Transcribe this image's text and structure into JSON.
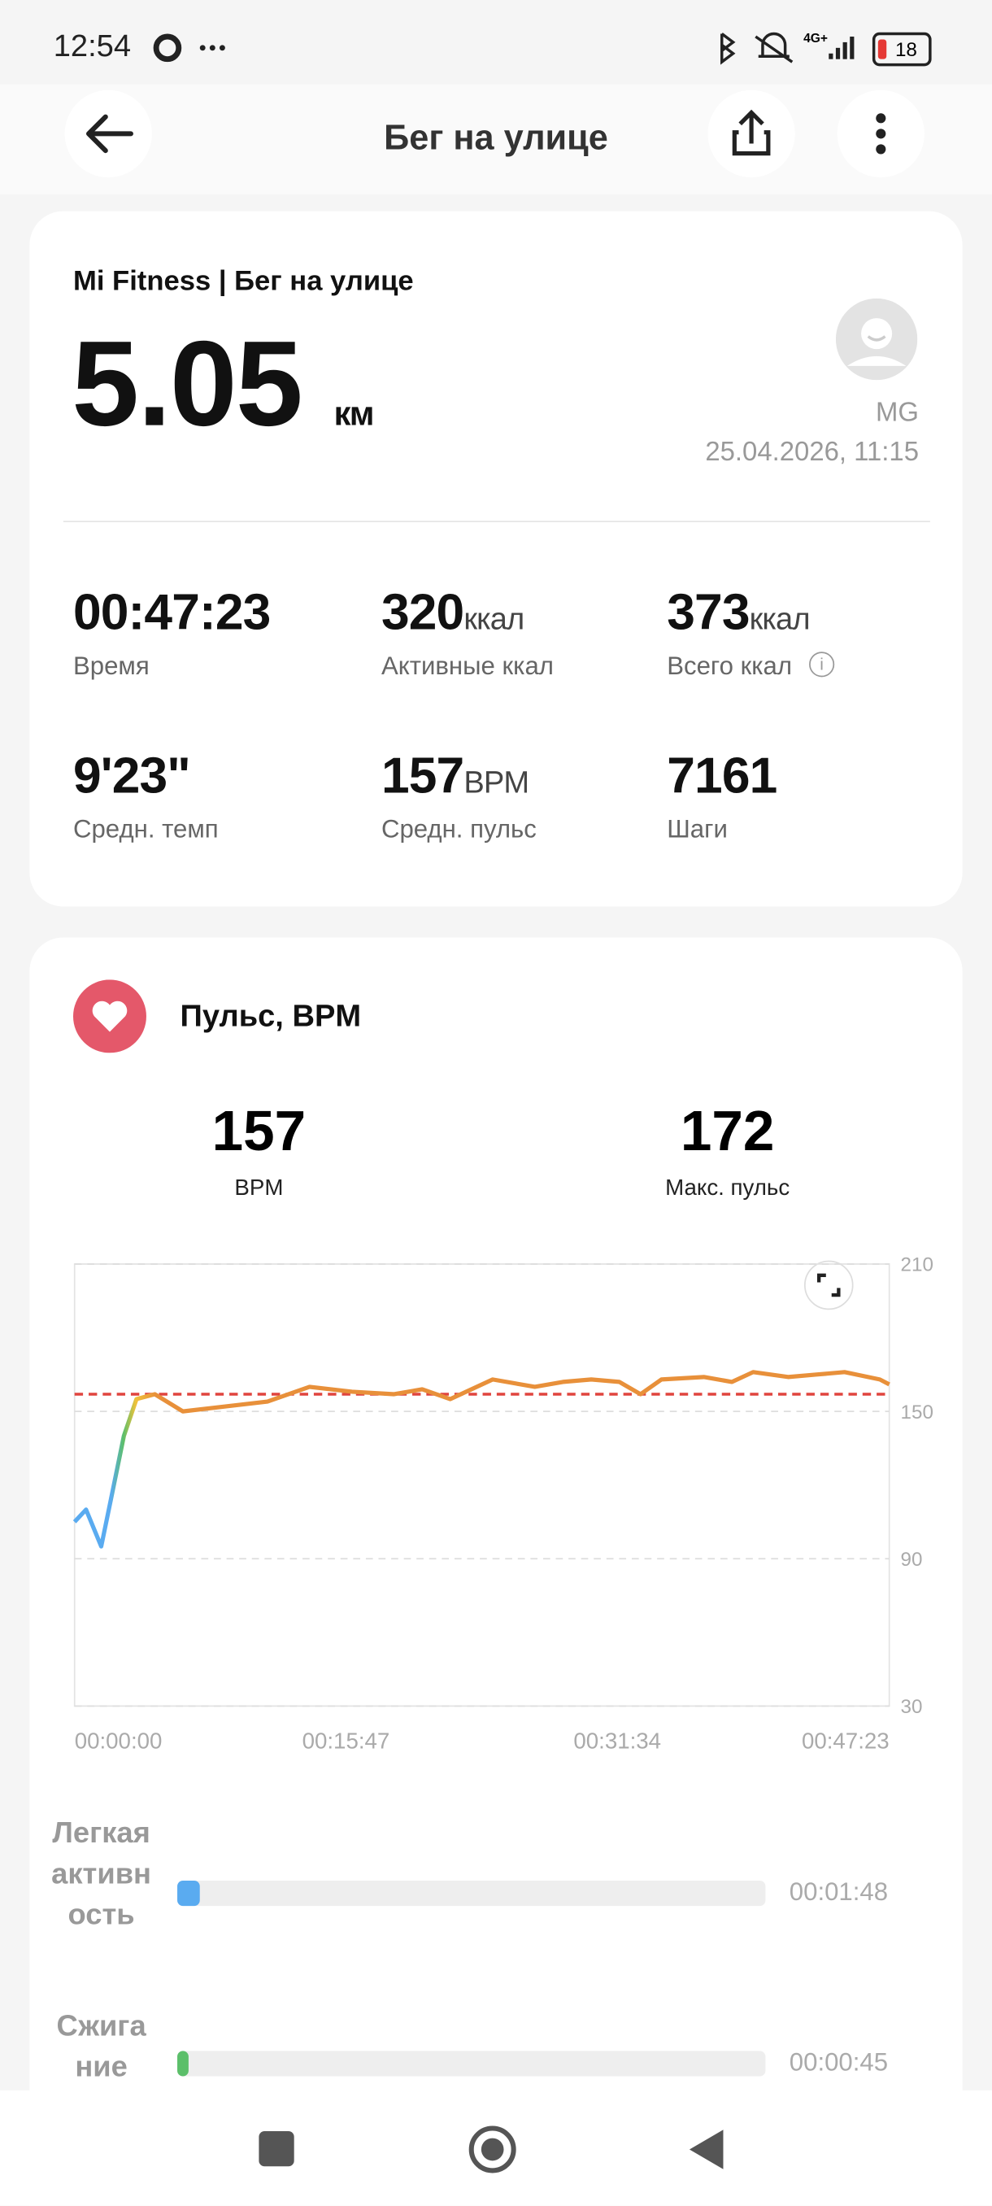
{
  "status_bar": {
    "time": "12:54",
    "battery": "18"
  },
  "header": {
    "title": "Бег на улице"
  },
  "summary": {
    "source": "Mi Fitness | Бег на улице",
    "distance": "5.05",
    "distance_unit": "км",
    "user": "MG",
    "date": "25.04.2026, 11:15",
    "stats": [
      {
        "value": "00:47:23",
        "unit": null,
        "label": "Время"
      },
      {
        "value": "320",
        "unit": "ккал",
        "label": "Активные ккал"
      },
      {
        "value": "373",
        "unit": "ккал",
        "label": "Всего ккал"
      },
      {
        "value": "9'23\"",
        "unit": null,
        "label": "Средн. темп"
      },
      {
        "value": "157",
        "unit": "BPM",
        "label": "Средн. пульс"
      },
      {
        "value": "7161",
        "unit": null,
        "label": "Шаги"
      }
    ]
  },
  "heart_rate": {
    "title": "Пульс, BPM",
    "avg": "157",
    "avg_label": "BPM",
    "max": "172",
    "max_label": "Макс. пульс",
    "chart_data": {
      "type": "line",
      "color": "#e8903a",
      "average": 157,
      "x": [
        0,
        40,
        93,
        123,
        172,
        216,
        280,
        378,
        526,
        673,
        820,
        968,
        1115,
        1213,
        1311,
        1459,
        1606,
        1704,
        1803,
        1901,
        1975,
        2048,
        2196,
        2294,
        2368,
        2490,
        2589,
        2687,
        2810,
        2843
      ],
      "series": [
        {
          "name": "Пульс",
          "color": "#e8903a",
          "values": [
            105,
            110,
            95,
            112,
            140,
            155,
            157,
            150,
            152,
            154,
            160,
            158,
            157,
            159,
            155,
            163,
            160,
            162,
            163,
            162,
            157,
            163,
            164,
            162,
            166,
            164,
            165,
            166,
            163,
            161
          ]
        }
      ],
      "xlim": [
        0,
        2843
      ],
      "xticks": [
        {
          "value": 0,
          "label": "00:00:00"
        },
        {
          "value": 947,
          "label": "00:15:47"
        },
        {
          "value": 1894,
          "label": "00:31:34"
        },
        {
          "value": 2843,
          "label": "00:47:23"
        }
      ],
      "ylim": [
        30,
        210
      ],
      "yticks": [
        210,
        150,
        90,
        30
      ],
      "grid": true
    },
    "zones": [
      {
        "name": "Легкая активность",
        "time": "00:01:48"
      },
      {
        "name": "Сжигание",
        "time": "00:00:45"
      }
    ]
  }
}
